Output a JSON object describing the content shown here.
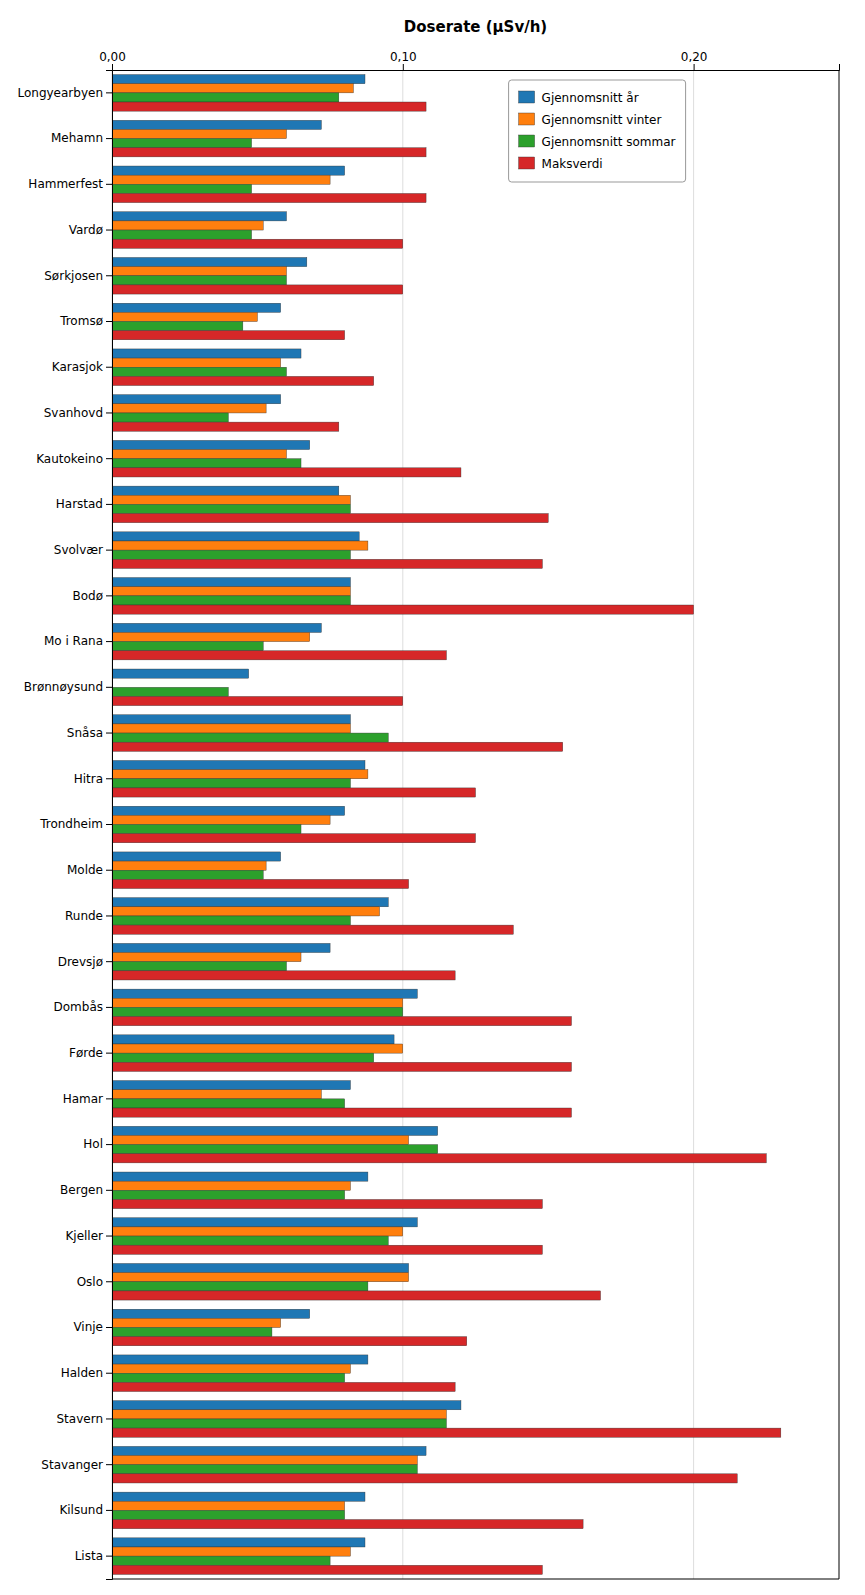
{
  "chart_data": {
    "type": "bar",
    "orientation": "horizontal",
    "xlabel": "Doserate (μSv/h)",
    "categories": [
      "Longyearbyen",
      "Mehamn",
      "Hammerfest",
      "Vardø",
      "Sørkjosen",
      "Tromsø",
      "Karasjok",
      "Svanhovd",
      "Kautokeino",
      "Harstad",
      "Svolvær",
      "Bodø",
      "Mo i Rana",
      "Brønnøysund",
      "Snåsa",
      "Hitra",
      "Trondheim",
      "Molde",
      "Runde",
      "Drevsjø",
      "Dombås",
      "Førde",
      "Hamar",
      "Hol",
      "Bergen",
      "Kjeller",
      "Oslo",
      "Vinje",
      "Halden",
      "Stavern",
      "Stavanger",
      "Kilsund",
      "Lista"
    ],
    "series": [
      {
        "name": "Gjennomsnitt år",
        "values": [
          0.087,
          0.072,
          0.08,
          0.06,
          0.067,
          0.058,
          0.065,
          0.058,
          0.068,
          0.078,
          0.085,
          0.082,
          0.072,
          0.047,
          0.082,
          0.087,
          0.08,
          0.058,
          0.095,
          0.075,
          0.105,
          0.097,
          0.082,
          0.112,
          0.088,
          0.105,
          0.102,
          0.068,
          0.088,
          0.12,
          0.108,
          0.087,
          0.087
        ]
      },
      {
        "name": "Gjennomsnitt vinter",
        "values": [
          0.083,
          0.06,
          0.075,
          0.052,
          0.06,
          0.05,
          0.058,
          0.053,
          0.06,
          0.082,
          0.088,
          0.082,
          0.068,
          0.0,
          0.082,
          0.088,
          0.075,
          0.053,
          0.092,
          0.065,
          0.1,
          0.1,
          0.072,
          0.102,
          0.082,
          0.1,
          0.102,
          0.058,
          0.082,
          0.115,
          0.105,
          0.08,
          0.082
        ]
      },
      {
        "name": "Gjennomsnitt sommar",
        "values": [
          0.078,
          0.048,
          0.048,
          0.048,
          0.06,
          0.045,
          0.06,
          0.04,
          0.065,
          0.082,
          0.082,
          0.082,
          0.052,
          0.04,
          0.095,
          0.082,
          0.065,
          0.052,
          0.082,
          0.06,
          0.1,
          0.09,
          0.08,
          0.112,
          0.08,
          0.095,
          0.088,
          0.055,
          0.08,
          0.115,
          0.105,
          0.08,
          0.075
        ]
      },
      {
        "name": "Maksverdi",
        "values": [
          0.108,
          0.108,
          0.108,
          0.1,
          0.1,
          0.08,
          0.09,
          0.078,
          0.12,
          0.15,
          0.148,
          0.2,
          0.115,
          0.1,
          0.155,
          0.125,
          0.125,
          0.102,
          0.138,
          0.118,
          0.158,
          0.158,
          0.158,
          0.225,
          0.148,
          0.148,
          0.168,
          0.122,
          0.118,
          0.23,
          0.215,
          0.162,
          0.148
        ]
      }
    ],
    "xlim": [
      0,
      0.25
    ],
    "xticks": [
      {
        "value": 0.0,
        "label": "0,00"
      },
      {
        "value": 0.1,
        "label": "0,10"
      },
      {
        "value": 0.2,
        "label": "0,20"
      }
    ],
    "grid": true,
    "legend": "upper right"
  }
}
